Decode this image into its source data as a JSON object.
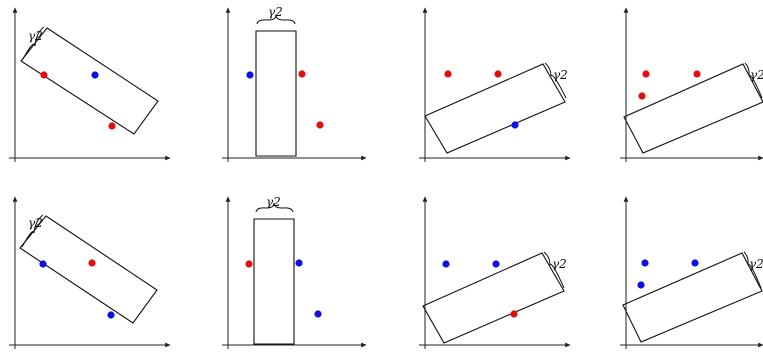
{
  "gamma_label": "γ2",
  "colors": {
    "red": "#e01010",
    "blue": "#1010e0"
  },
  "panels": [
    {
      "id": "row1-col1",
      "points": [
        "red",
        "blue",
        "red"
      ]
    },
    {
      "id": "row1-col2",
      "points": [
        "blue",
        "red",
        "red"
      ]
    },
    {
      "id": "row1-col3",
      "points": [
        "red",
        "red",
        "blue"
      ]
    },
    {
      "id": "row1-col4",
      "points": [
        "red",
        "red",
        "red"
      ]
    },
    {
      "id": "row2-col1",
      "points": [
        "blue",
        "red",
        "blue"
      ]
    },
    {
      "id": "row2-col2",
      "points": [
        "red",
        "blue",
        "blue"
      ]
    },
    {
      "id": "row2-col3",
      "points": [
        "blue",
        "blue",
        "red"
      ]
    },
    {
      "id": "row2-col4",
      "points": [
        "blue",
        "blue",
        "blue"
      ]
    }
  ]
}
